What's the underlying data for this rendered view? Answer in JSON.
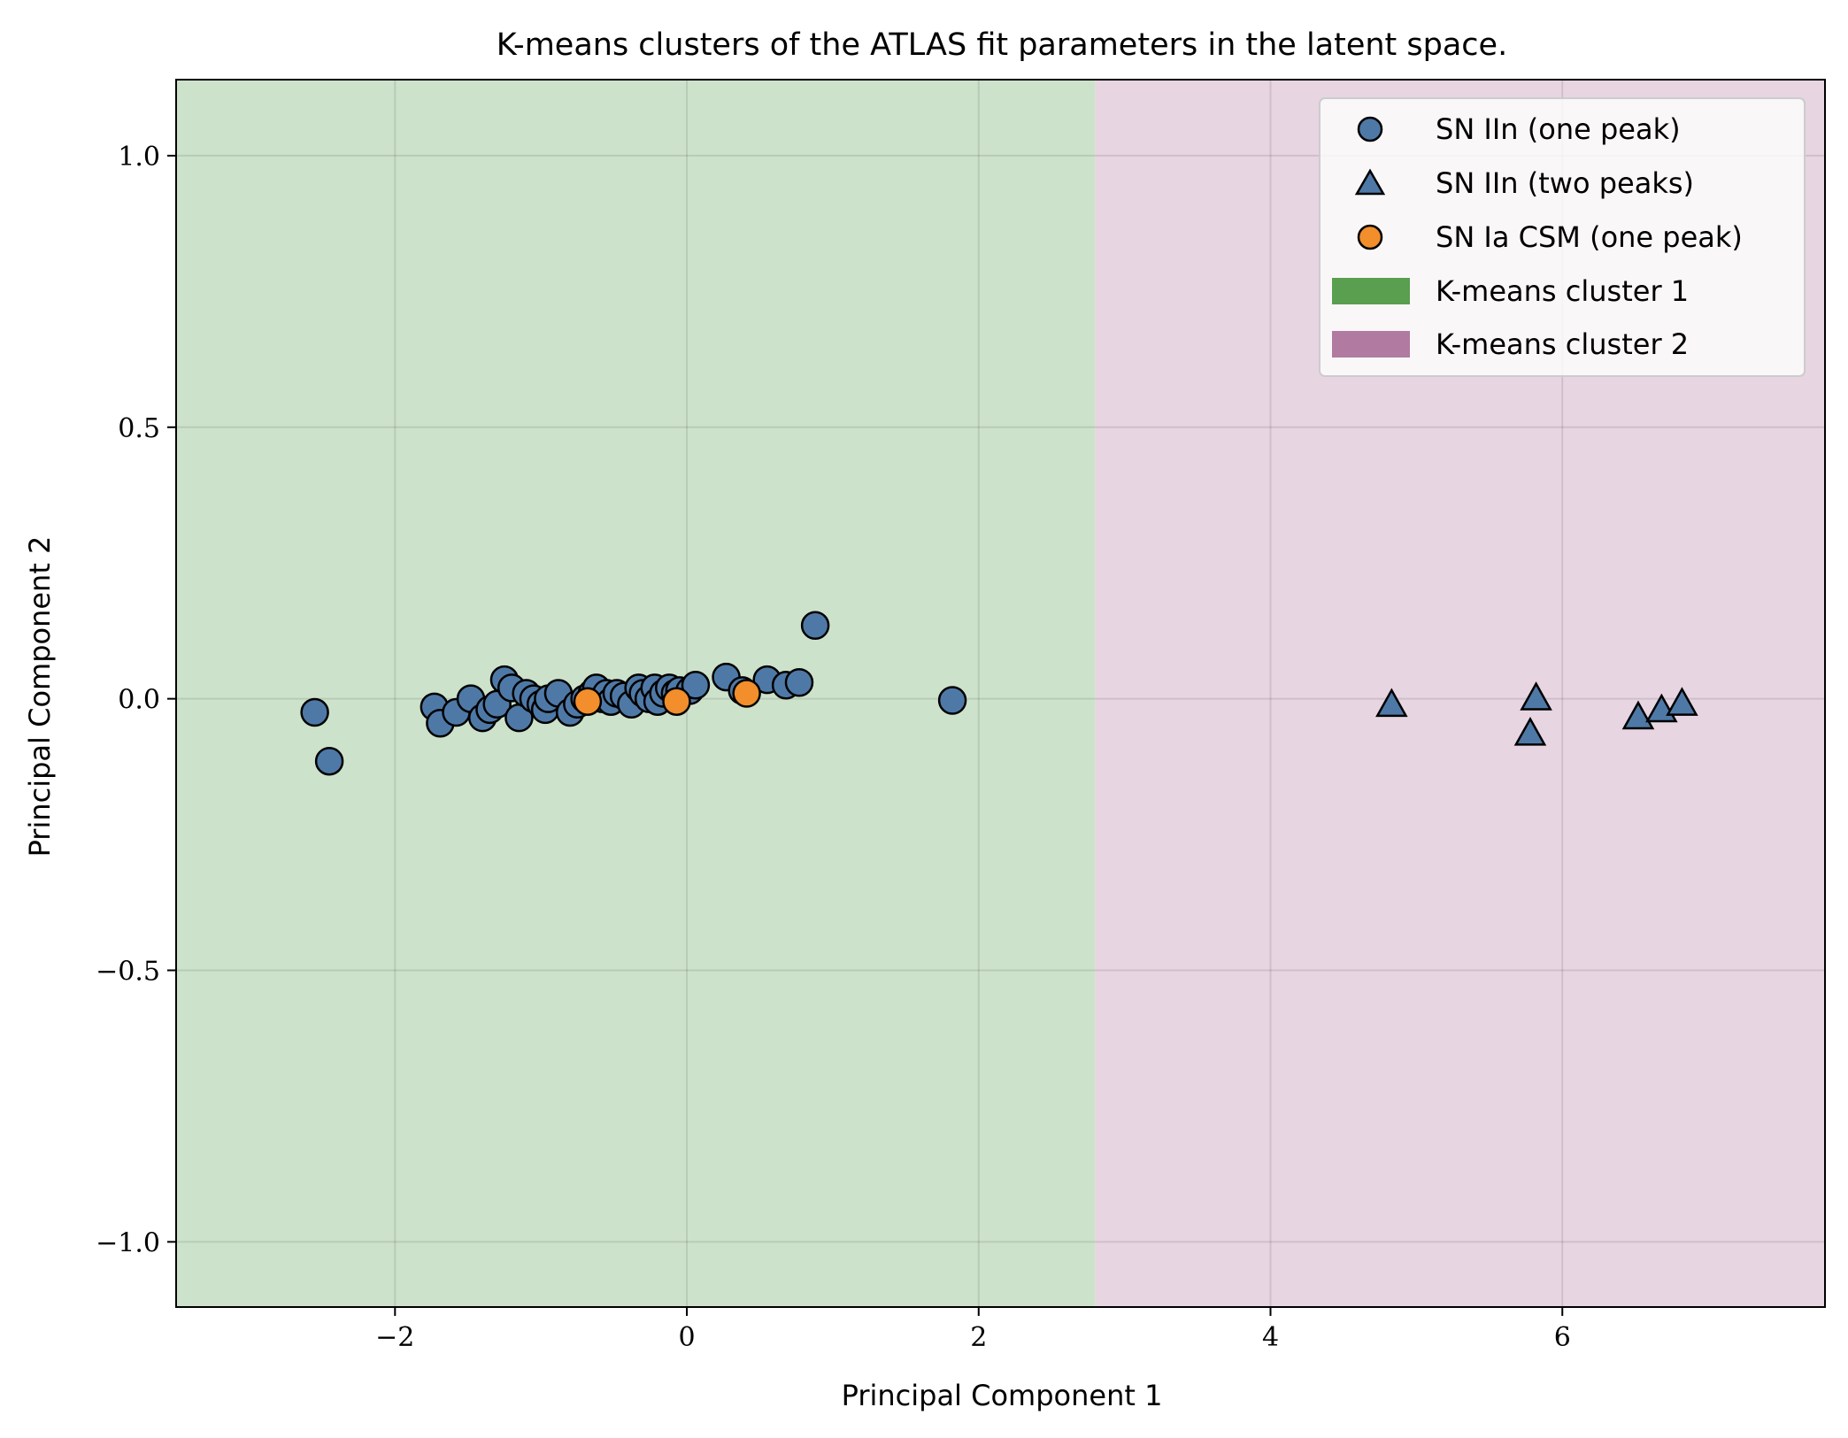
{
  "chart_data": {
    "type": "scatter",
    "title": "K-means clusters of the ATLAS fit parameters in the latent space.",
    "xlabel": "Principal Component 1",
    "ylabel": "Principal Component 2",
    "xlim": [
      -3.5,
      7.8
    ],
    "ylim": [
      -1.12,
      1.14
    ],
    "xticks": [
      -2,
      0,
      2,
      4,
      6
    ],
    "xtick_labels": [
      "−2",
      "0",
      "2",
      "4",
      "6"
    ],
    "yticks": [
      1.0,
      0.5,
      0.0,
      -0.5,
      -1.0
    ],
    "ytick_labels": [
      "1.0",
      "0.5",
      "0.0",
      "−0.5",
      "−1.0"
    ],
    "grid": true,
    "legend_position": "top-right",
    "regions": [
      {
        "name": "K-means cluster 1",
        "x_from": -3.5,
        "x_to": 2.8,
        "color": "#5a9e4f",
        "fill": "#cde2cb"
      },
      {
        "name": "K-means cluster 2",
        "x_from": 2.8,
        "x_to": 7.8,
        "color": "#b07aa1",
        "fill": "#e7d5e2"
      }
    ],
    "series": [
      {
        "name": "SN IIn (one peak)",
        "marker": "circle",
        "color": "#4e79a7",
        "points": [
          [
            -2.55,
            -0.025
          ],
          [
            -2.45,
            -0.115
          ],
          [
            -1.73,
            -0.015
          ],
          [
            -1.69,
            -0.045
          ],
          [
            -1.58,
            -0.025
          ],
          [
            -1.48,
            0.0
          ],
          [
            -1.4,
            -0.035
          ],
          [
            -1.35,
            -0.02
          ],
          [
            -1.3,
            -0.01
          ],
          [
            -1.25,
            0.035
          ],
          [
            -1.2,
            0.02
          ],
          [
            -1.15,
            -0.035
          ],
          [
            -1.1,
            0.01
          ],
          [
            -1.05,
            0.0
          ],
          [
            -1.0,
            -0.01
          ],
          [
            -0.97,
            -0.02
          ],
          [
            -0.95,
            0.0
          ],
          [
            -0.88,
            0.01
          ],
          [
            -0.8,
            -0.025
          ],
          [
            -0.75,
            -0.01
          ],
          [
            -0.7,
            0.0
          ],
          [
            -0.65,
            0.01
          ],
          [
            -0.62,
            0.02
          ],
          [
            -0.58,
            0.0
          ],
          [
            -0.55,
            0.01
          ],
          [
            -0.52,
            -0.005
          ],
          [
            -0.48,
            0.01
          ],
          [
            -0.43,
            0.005
          ],
          [
            -0.38,
            -0.01
          ],
          [
            -0.33,
            0.02
          ],
          [
            -0.3,
            0.01
          ],
          [
            -0.26,
            0.0
          ],
          [
            -0.22,
            0.02
          ],
          [
            -0.2,
            -0.005
          ],
          [
            -0.16,
            0.01
          ],
          [
            -0.12,
            0.02
          ],
          [
            -0.08,
            0.01
          ],
          [
            -0.05,
            0.015
          ],
          [
            0.02,
            0.015
          ],
          [
            0.06,
            0.025
          ],
          [
            0.27,
            0.04
          ],
          [
            0.38,
            0.015
          ],
          [
            0.55,
            0.035
          ],
          [
            0.68,
            0.025
          ],
          [
            0.77,
            0.03
          ],
          [
            0.88,
            0.135
          ],
          [
            1.82,
            -0.003
          ]
        ]
      },
      {
        "name": "SN IIn (two peaks)",
        "marker": "triangle",
        "color": "#4e79a7",
        "points": [
          [
            4.83,
            -0.012
          ],
          [
            5.78,
            -0.065
          ],
          [
            5.82,
            0.0
          ],
          [
            6.52,
            -0.035
          ],
          [
            6.68,
            -0.022
          ],
          [
            6.82,
            -0.01
          ]
        ]
      },
      {
        "name": "SN Ia CSM (one peak)",
        "marker": "circle",
        "color": "#f28e2b",
        "points": [
          [
            -0.68,
            -0.005
          ],
          [
            -0.07,
            -0.005
          ],
          [
            0.41,
            0.01
          ]
        ]
      }
    ]
  }
}
